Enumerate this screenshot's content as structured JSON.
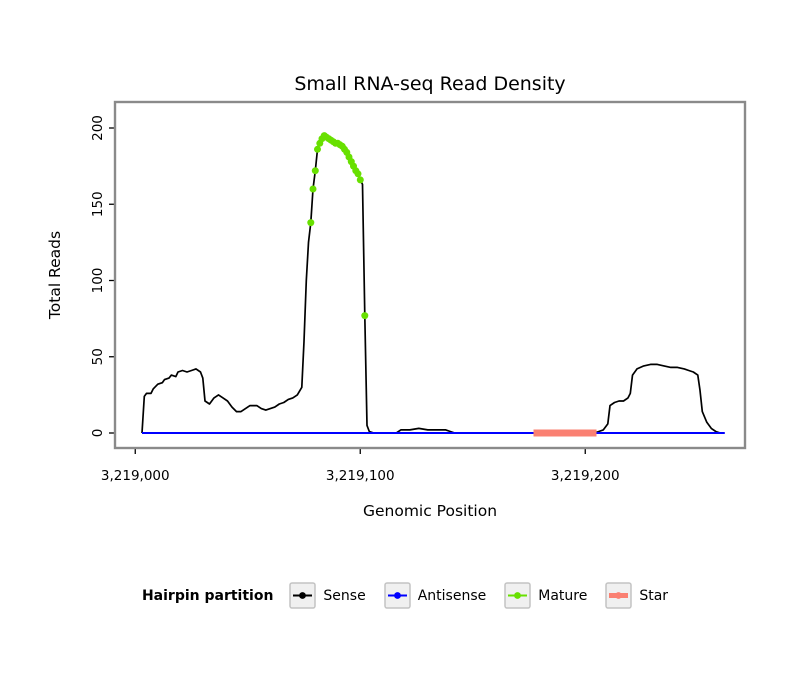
{
  "chart_data": {
    "type": "line",
    "title": "Small RNA-seq Read Density",
    "xlabel": "Genomic Position",
    "ylabel": "Total Reads",
    "xlim": [
      3218991,
      3219271
    ],
    "ylim": [
      0,
      200
    ],
    "grid": false,
    "background_color": "#FFFFFF",
    "panel_border_color": "#8A8A8A",
    "xticks": [
      {
        "value": 3219000,
        "label": "3,219,000"
      },
      {
        "value": 3219100,
        "label": "3,219,100"
      },
      {
        "value": 3219200,
        "label": "3,219,200"
      }
    ],
    "yticks": [
      {
        "value": 0,
        "label": "0"
      },
      {
        "value": 50,
        "label": "50"
      },
      {
        "value": 100,
        "label": "100"
      },
      {
        "value": 150,
        "label": "150"
      },
      {
        "value": 200,
        "label": "200"
      }
    ],
    "legend": {
      "position": "bottom",
      "title": "Hairpin partition",
      "entries": [
        {
          "name": "Sense",
          "color": "#000000",
          "line_width": 2
        },
        {
          "name": "Antisense",
          "color": "#0000FF",
          "line_width": 2
        },
        {
          "name": "Mature",
          "color": "#68E000",
          "line_width": 2
        },
        {
          "name": "Star",
          "color": "#FA8072",
          "line_width": 5
        }
      ]
    },
    "series": [
      {
        "name": "Sense",
        "type": "line",
        "color": "#000000",
        "line_width": 1.7,
        "points": [
          [
            3219003,
            0
          ],
          [
            3219004,
            24
          ],
          [
            3219005,
            26
          ],
          [
            3219007,
            26
          ],
          [
            3219008,
            29
          ],
          [
            3219010,
            32
          ],
          [
            3219012,
            33
          ],
          [
            3219013,
            35
          ],
          [
            3219015,
            36
          ],
          [
            3219016,
            38
          ],
          [
            3219018,
            37
          ],
          [
            3219019,
            40
          ],
          [
            3219021,
            41
          ],
          [
            3219023,
            40
          ],
          [
            3219025,
            41
          ],
          [
            3219027,
            42
          ],
          [
            3219029,
            40
          ],
          [
            3219030,
            36
          ],
          [
            3219031,
            21
          ],
          [
            3219033,
            19
          ],
          [
            3219035,
            23
          ],
          [
            3219037,
            25
          ],
          [
            3219039,
            23
          ],
          [
            3219041,
            21
          ],
          [
            3219043,
            17
          ],
          [
            3219045,
            14
          ],
          [
            3219047,
            14
          ],
          [
            3219049,
            16
          ],
          [
            3219051,
            18
          ],
          [
            3219054,
            18
          ],
          [
            3219056,
            16
          ],
          [
            3219058,
            15
          ],
          [
            3219060,
            16
          ],
          [
            3219062,
            17
          ],
          [
            3219064,
            19
          ],
          [
            3219066,
            20
          ],
          [
            3219068,
            22
          ],
          [
            3219070,
            23
          ],
          [
            3219072,
            25
          ],
          [
            3219074,
            30
          ],
          [
            3219075,
            60
          ],
          [
            3219076,
            100
          ],
          [
            3219077,
            125
          ],
          [
            3219078,
            138
          ],
          [
            3219079,
            160
          ],
          [
            3219080,
            172
          ],
          [
            3219081,
            186
          ],
          [
            3219082,
            190
          ],
          [
            3219083,
            193
          ],
          [
            3219084,
            195
          ],
          [
            3219085,
            194
          ],
          [
            3219086,
            193
          ],
          [
            3219087,
            192
          ],
          [
            3219088,
            191
          ],
          [
            3219089,
            190
          ],
          [
            3219090,
            190
          ],
          [
            3219091,
            189
          ],
          [
            3219092,
            188
          ],
          [
            3219093,
            186
          ],
          [
            3219094,
            184
          ],
          [
            3219095,
            181
          ],
          [
            3219096,
            178
          ],
          [
            3219097,
            175
          ],
          [
            3219098,
            172
          ],
          [
            3219099,
            170
          ],
          [
            3219100,
            166
          ],
          [
            3219101,
            163
          ],
          [
            3219102,
            77
          ],
          [
            3219103,
            5
          ],
          [
            3219104,
            1
          ],
          [
            3219106,
            0
          ],
          [
            3219116,
            0
          ],
          [
            3219118,
            2
          ],
          [
            3219122,
            2
          ],
          [
            3219126,
            3
          ],
          [
            3219130,
            2
          ],
          [
            3219134,
            2
          ],
          [
            3219138,
            2
          ],
          [
            3219140,
            1
          ],
          [
            3219142,
            0
          ],
          [
            3219204,
            0
          ],
          [
            3219206,
            1
          ],
          [
            3219208,
            2
          ],
          [
            3219210,
            6
          ],
          [
            3219211,
            18
          ],
          [
            3219213,
            20
          ],
          [
            3219215,
            21
          ],
          [
            3219217,
            21
          ],
          [
            3219219,
            23
          ],
          [
            3219220,
            26
          ],
          [
            3219221,
            38
          ],
          [
            3219223,
            42
          ],
          [
            3219226,
            44
          ],
          [
            3219229,
            45
          ],
          [
            3219232,
            45
          ],
          [
            3219235,
            44
          ],
          [
            3219238,
            43
          ],
          [
            3219241,
            43
          ],
          [
            3219244,
            42
          ],
          [
            3219246,
            41
          ],
          [
            3219248,
            40
          ],
          [
            3219250,
            38
          ],
          [
            3219251,
            28
          ],
          [
            3219252,
            14
          ],
          [
            3219254,
            7
          ],
          [
            3219256,
            3
          ],
          [
            3219258,
            1
          ],
          [
            3219260,
            0
          ]
        ]
      },
      {
        "name": "Antisense",
        "type": "line",
        "color": "#0000FF",
        "line_width": 2,
        "points": [
          [
            3219003,
            0
          ],
          [
            3219262,
            0
          ]
        ]
      },
      {
        "name": "Star",
        "type": "line",
        "color": "#FA8072",
        "line_width": 7,
        "points": [
          [
            3219177,
            0
          ],
          [
            3219205,
            0
          ]
        ]
      },
      {
        "name": "Mature",
        "type": "scatter",
        "color": "#68E000",
        "point_radius": 3.5,
        "points": [
          [
            3219078,
            138
          ],
          [
            3219079,
            160
          ],
          [
            3219080,
            172
          ],
          [
            3219081,
            186
          ],
          [
            3219082,
            190
          ],
          [
            3219083,
            193
          ],
          [
            3219084,
            195
          ],
          [
            3219085,
            194
          ],
          [
            3219086,
            193
          ],
          [
            3219087,
            192
          ],
          [
            3219088,
            191
          ],
          [
            3219089,
            190
          ],
          [
            3219090,
            190
          ],
          [
            3219091,
            189
          ],
          [
            3219092,
            188
          ],
          [
            3219093,
            186
          ],
          [
            3219094,
            184
          ],
          [
            3219095,
            181
          ],
          [
            3219096,
            178
          ],
          [
            3219097,
            175
          ],
          [
            3219098,
            172
          ],
          [
            3219099,
            170
          ],
          [
            3219100,
            166
          ],
          [
            3219102,
            77
          ]
        ]
      }
    ]
  }
}
